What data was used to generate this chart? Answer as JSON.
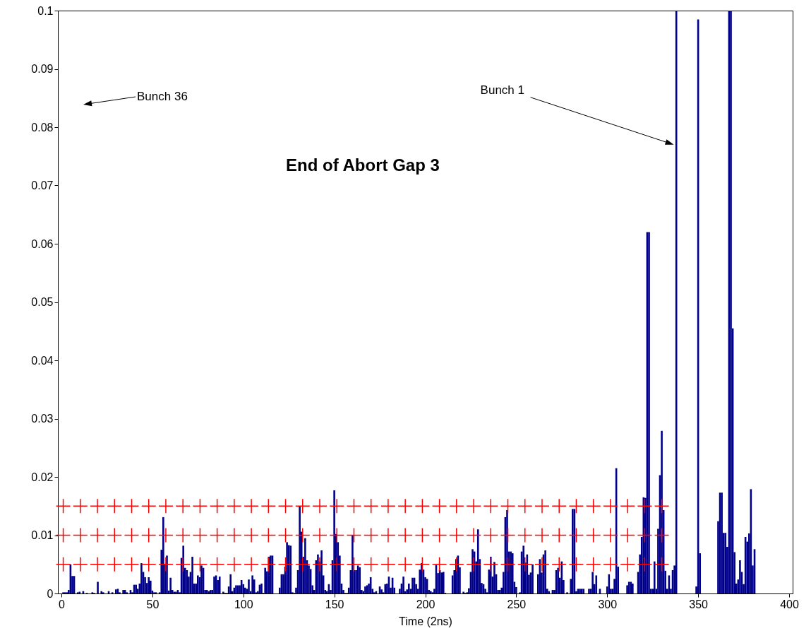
{
  "chart_data": {
    "type": "bar",
    "title": "End of Abort Gap 3",
    "xlabel": "Time (2ns)",
    "xlim": [
      0,
      400
    ],
    "ylim": [
      0,
      0.1
    ],
    "xticks": [
      0,
      50,
      100,
      150,
      200,
      250,
      300,
      350,
      400
    ],
    "yticks": [
      0,
      0.01,
      0.02,
      0.03,
      0.04,
      0.05,
      0.06,
      0.07,
      0.08,
      0.09,
      0.1
    ],
    "marker": "cross",
    "annotations": [
      "Bunch 36",
      {
        "text": "Bunch 1",
        "x": 336.6,
        "y": 0.077
      }
    ],
    "series": [
      {
        "type": "bar",
        "color": "#00008b",
        "x": [
          1,
          2,
          3,
          4,
          5,
          6,
          7,
          8,
          9,
          10,
          11,
          12,
          13,
          14,
          15,
          16,
          17,
          18,
          19,
          20,
          21,
          22,
          23,
          24,
          25,
          26,
          27,
          28,
          29,
          30,
          31,
          32,
          33,
          34,
          35,
          36,
          37,
          38,
          39,
          40,
          41,
          42,
          43,
          44,
          45,
          46,
          47,
          48,
          49,
          50,
          51,
          52,
          53,
          54,
          55,
          56,
          57,
          58,
          59,
          60,
          61,
          62,
          63,
          64,
          65,
          66,
          67,
          68,
          69,
          70,
          71,
          72,
          73,
          74,
          75,
          76,
          77,
          78,
          79,
          80,
          81,
          82,
          83,
          84,
          85,
          86,
          87,
          88,
          89,
          90,
          91,
          92,
          93,
          94,
          95,
          96,
          97,
          98,
          99,
          100,
          101,
          102,
          103,
          104,
          105,
          106,
          107,
          108,
          109,
          110,
          111,
          112,
          113,
          114,
          115,
          116,
          117,
          118,
          119,
          120,
          121,
          122,
          123,
          124,
          125,
          126,
          127,
          128,
          129,
          130,
          131,
          132,
          133,
          134,
          135,
          136,
          137,
          138,
          139,
          140,
          141,
          142,
          143,
          144,
          145,
          146,
          147,
          148,
          149,
          150,
          151,
          152,
          153,
          154,
          155,
          156,
          157,
          158,
          159,
          160,
          161,
          162,
          163,
          164,
          165,
          166,
          167,
          168,
          169,
          170,
          171,
          172,
          173,
          174,
          175,
          176,
          177,
          178,
          179,
          180,
          181,
          182,
          183,
          184,
          185,
          186,
          187,
          188,
          189,
          190,
          191,
          192,
          193,
          194,
          195,
          196,
          197,
          198,
          199,
          200,
          201,
          202,
          203,
          204,
          205,
          206,
          207,
          208,
          209,
          210,
          211,
          212,
          213,
          214,
          215,
          216,
          217,
          218,
          219,
          220,
          221,
          222,
          223,
          224,
          225,
          226,
          227,
          228,
          229,
          230,
          231,
          232,
          233,
          234,
          235,
          236,
          237,
          238,
          239,
          240,
          241,
          242,
          243,
          244,
          245,
          246,
          247,
          248,
          249,
          250,
          251,
          252,
          253,
          254,
          255,
          256,
          257,
          258,
          259,
          260,
          261,
          262,
          263,
          264,
          265,
          266,
          267,
          268,
          269,
          270,
          271,
          272,
          273,
          274,
          275,
          276,
          277,
          278,
          279,
          280,
          281,
          282,
          283,
          284,
          285,
          286,
          287,
          288,
          289,
          290,
          291,
          292,
          293,
          294,
          295,
          296,
          297,
          298,
          299,
          300,
          301,
          302,
          303,
          304,
          305,
          306,
          307,
          308,
          309,
          310,
          311,
          312,
          313,
          314,
          315,
          316,
          317,
          318,
          319,
          320,
          321,
          322,
          323,
          324,
          325,
          326,
          327,
          328,
          329,
          330,
          331,
          332,
          333,
          334,
          335,
          336,
          337,
          338,
          339,
          340,
          341,
          342,
          343,
          344,
          345,
          346,
          347,
          348,
          349,
          350,
          351,
          352,
          353,
          354,
          355,
          356,
          357,
          358,
          359,
          360,
          361,
          362,
          363,
          364,
          365,
          366,
          367,
          368,
          369,
          370,
          371,
          372,
          373,
          374,
          375,
          376,
          377,
          378,
          379,
          380,
          381
        ],
        "values": [
          0.0002,
          0.0002,
          0.0002,
          0.0006,
          0.005,
          0.003,
          0.003,
          0,
          0.0002,
          0.0003,
          0,
          0.0004,
          0,
          0.0001,
          0,
          0,
          0.0002,
          0.0001,
          0,
          0.002,
          0,
          0.0004,
          0.0002,
          0,
          0,
          0.0004,
          0,
          0.0002,
          0,
          0.0007,
          0.0008,
          0.0002,
          0,
          0.0006,
          0.0006,
          0.0002,
          0,
          0.0006,
          0.0002,
          0.0015,
          0.0015,
          0.0008,
          0.0017,
          0.0052,
          0.0037,
          0.0028,
          0.0018,
          0.0028,
          0.0022,
          0.0005,
          0.0002,
          0.0002,
          0,
          0.0002,
          0.0075,
          0.0131,
          0.005,
          0.0065,
          0.0005,
          0.0027,
          0.0006,
          0.0003,
          0.0003,
          0.0006,
          0.0002,
          0.0061,
          0.0082,
          0.0044,
          0.004,
          0.0029,
          0.0037,
          0.0063,
          0.0017,
          0.0017,
          0.0031,
          0.0028,
          0.0048,
          0.0044,
          0.0006,
          0.0006,
          0.0004,
          0.0006,
          0.0006,
          0.0029,
          0.0031,
          0.0023,
          0.0029,
          0,
          0.0003,
          0.0001,
          0.0001,
          0.0012,
          0.0033,
          0.0004,
          0.001,
          0.0014,
          0.0014,
          0.0014,
          0.0023,
          0.0016,
          0.001,
          0.0008,
          0.0024,
          0.0004,
          0.0031,
          0.0024,
          0.0002,
          0.0004,
          0.0015,
          0.0017,
          0.0001,
          0.0044,
          0.0038,
          0.0063,
          0.0065,
          0.0065,
          0,
          0,
          0,
          0.001,
          0.0033,
          0.0033,
          0.0046,
          0.0088,
          0.0083,
          0.0082,
          0.0002,
          0.0001,
          0.001,
          0.004,
          0.015,
          0.0106,
          0.0063,
          0.0095,
          0.0057,
          0.0048,
          0.0042,
          0.0014,
          0.0006,
          0.0057,
          0.0067,
          0.0055,
          0.0074,
          0.0031,
          0.0006,
          0.0004,
          0.0016,
          0.0006,
          0.0057,
          0.0177,
          0.0102,
          0.0088,
          0.0065,
          0.0017,
          0.0006,
          0.0001,
          0.0001,
          0.001,
          0.004,
          0.01,
          0.004,
          0.004,
          0.0048,
          0.0045,
          0.0006,
          0.0004,
          0.0012,
          0.0014,
          0.0017,
          0.0028,
          0.0008,
          0.0002,
          0.0004,
          0,
          0.0012,
          0.0007,
          0.0002,
          0.0016,
          0.0017,
          0.0029,
          0.001,
          0.0027,
          0.001,
          0,
          0,
          0.0008,
          0.0017,
          0.0029,
          0.0004,
          0.0007,
          0.0017,
          0.0008,
          0.0027,
          0.0027,
          0.0016,
          0.0008,
          0.0041,
          0.0052,
          0.0041,
          0.0028,
          0.0025,
          0.0006,
          0.0004,
          0.0002,
          0.0008,
          0.0049,
          0.0035,
          0.004,
          0.0036,
          0.0037,
          0.0001,
          0,
          0,
          0,
          0.0031,
          0.004,
          0.0059,
          0.0065,
          0.0045,
          0,
          0.0003,
          0.0001,
          0.0002,
          0.0009,
          0.0037,
          0.0076,
          0.0072,
          0.0055,
          0.011,
          0.0059,
          0.0018,
          0.0016,
          0.0008,
          0.0002,
          0.0041,
          0.0063,
          0.0029,
          0.0054,
          0.0033,
          0.0006,
          0.0006,
          0.001,
          0.0037,
          0.0131,
          0.0143,
          0.0072,
          0.0072,
          0.0069,
          0.002,
          0.0011,
          0,
          0.0002,
          0.0072,
          0.0082,
          0.0053,
          0.0067,
          0.0032,
          0.0036,
          0.005,
          0,
          0,
          0.0033,
          0.0059,
          0.0036,
          0.0067,
          0.0074,
          0.0008,
          0.0004,
          0,
          0.0006,
          0.0006,
          0.004,
          0.0044,
          0.0027,
          0.0055,
          0.0023,
          0,
          0.0002,
          0,
          0.0025,
          0.0145,
          0.0145,
          0.0004,
          0.0008,
          0.0008,
          0.0008,
          0.0008,
          0,
          0,
          0.0008,
          0.0008,
          0.0037,
          0.0016,
          0.0031,
          0,
          0.0008,
          0,
          0,
          0,
          0.0012,
          0.0033,
          0.0008,
          0.0008,
          0.0025,
          0.0215,
          0.0046,
          0,
          0,
          0,
          0,
          0.0014,
          0.002,
          0.002,
          0.0017,
          0,
          0,
          0.0037,
          0.0067,
          0.0097,
          0.0165,
          0.0164,
          0.062,
          0.062,
          0.0008,
          0.0008,
          0.0055,
          0.0008,
          0.0111,
          0.0203,
          0.0279,
          0.0143,
          0.0039,
          0.0008,
          0.0031,
          0.0008,
          0.004,
          0.0048,
          0.1,
          0,
          0,
          0,
          0,
          0,
          0,
          0,
          0,
          0,
          0,
          0.0012,
          0.0985,
          0.0069,
          0,
          0,
          0,
          0,
          0,
          0,
          0,
          0,
          0,
          0.0124,
          0.0173,
          0.0173,
          0.0104,
          0.0104,
          0.008,
          0.1,
          0.1,
          0.0455,
          0.0071,
          0.0017,
          0.0024,
          0.0057,
          0.0037,
          0.0016,
          0.0097,
          0.0089,
          0.0103,
          0.0179,
          0.0048,
          0.0076
        ]
      },
      {
        "type": "scatter",
        "color": "#ff0000",
        "x": [
          1,
          10.4,
          19.8,
          29.2,
          38.6,
          48,
          57.4,
          66.8,
          76.2,
          85.6,
          95,
          104.4,
          113.8,
          123.2,
          132.6,
          142,
          151.4,
          160.8,
          170.2,
          179.6,
          189,
          198.4,
          207.8,
          217.2,
          226.6,
          236,
          245.4,
          254.8,
          264.2,
          273.6,
          283,
          292.4,
          301.8,
          311.2,
          320.6,
          330
        ],
        "values": [
          0.005,
          0.005,
          0.005,
          0.005,
          0.005,
          0.005,
          0.005,
          0.005,
          0.005,
          0.005,
          0.005,
          0.005,
          0.005,
          0.005,
          0.005,
          0.005,
          0.005,
          0.005,
          0.005,
          0.005,
          0.005,
          0.005,
          0.005,
          0.005,
          0.005,
          0.005,
          0.005,
          0.005,
          0.005,
          0.005,
          0.005,
          0.005,
          0.005,
          0.005,
          0.005,
          0.005
        ]
      },
      {
        "type": "scatter",
        "color": "#ff0000",
        "x": [
          1,
          10.4,
          19.8,
          29.2,
          38.6,
          48,
          57.4,
          66.8,
          76.2,
          85.6,
          95,
          104.4,
          113.8,
          123.2,
          132.6,
          142,
          151.4,
          160.8,
          170.2,
          179.6,
          189,
          198.4,
          207.8,
          217.2,
          226.6,
          236,
          245.4,
          254.8,
          264.2,
          273.6,
          283,
          292.4,
          301.8,
          311.2,
          320.6,
          330
        ],
        "values": [
          0.01,
          0.01,
          0.01,
          0.01,
          0.01,
          0.01,
          0.01,
          0.01,
          0.01,
          0.01,
          0.01,
          0.01,
          0.01,
          0.01,
          0.01,
          0.01,
          0.01,
          0.01,
          0.01,
          0.01,
          0.01,
          0.01,
          0.01,
          0.01,
          0.01,
          0.01,
          0.01,
          0.01,
          0.01,
          0.01,
          0.01,
          0.01,
          0.01,
          0.01,
          0.01,
          0.01
        ]
      },
      {
        "type": "scatter",
        "color": "#ff0000",
        "x": [
          1,
          10.4,
          19.8,
          29.2,
          38.6,
          48,
          57.4,
          66.8,
          76.2,
          85.6,
          95,
          104.4,
          113.8,
          123.2,
          132.6,
          142,
          151.4,
          160.8,
          170.2,
          179.6,
          189,
          198.4,
          207.8,
          217.2,
          226.6,
          236,
          245.4,
          254.8,
          264.2,
          273.6,
          283,
          292.4,
          301.8,
          311.2,
          320.6,
          330
        ],
        "values": [
          0.015,
          0.015,
          0.015,
          0.015,
          0.015,
          0.015,
          0.015,
          0.015,
          0.015,
          0.015,
          0.015,
          0.015,
          0.015,
          0.015,
          0.015,
          0.015,
          0.015,
          0.015,
          0.015,
          0.015,
          0.015,
          0.015,
          0.015,
          0.015,
          0.015,
          0.015,
          0.015,
          0.015,
          0.015,
          0.015,
          0.015,
          0.015,
          0.015,
          0.015,
          0.015,
          0.015
        ]
      }
    ]
  }
}
